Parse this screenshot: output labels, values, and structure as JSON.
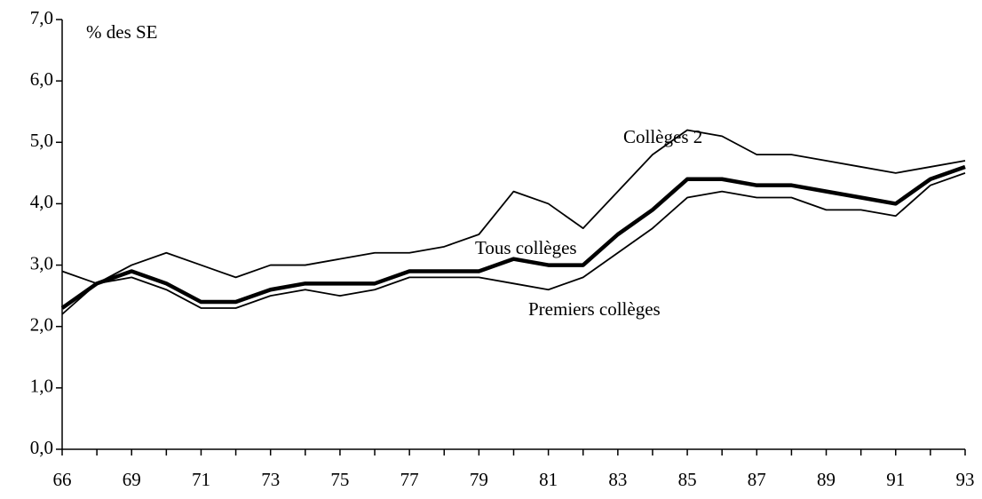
{
  "chart_data": {
    "type": "line",
    "y_label": "% des SE",
    "categories": [
      "66",
      null,
      "69",
      null,
      "71",
      null,
      "73",
      null,
      "75",
      null,
      "77",
      null,
      "79",
      null,
      "81",
      null,
      "83",
      null,
      "85",
      null,
      "87",
      null,
      "89",
      null,
      "91",
      null,
      "93"
    ],
    "series": [
      {
        "name": "Collèges 2",
        "color": "#000000",
        "values": [
          2.9,
          2.7,
          3.0,
          3.2,
          3.0,
          2.8,
          3.0,
          3.0,
          3.1,
          3.2,
          3.2,
          3.3,
          3.5,
          4.2,
          4.0,
          3.6,
          4.2,
          4.8,
          5.2,
          5.1,
          4.8,
          4.8,
          4.7,
          4.6,
          4.5,
          4.6,
          4.7
        ]
      },
      {
        "name": "Tous collèges",
        "color": "#000000",
        "values": [
          2.3,
          2.7,
          2.9,
          2.7,
          2.4,
          2.4,
          2.6,
          2.7,
          2.7,
          2.7,
          2.9,
          2.9,
          2.9,
          3.1,
          3.0,
          3.0,
          3.5,
          3.9,
          4.4,
          4.4,
          4.3,
          4.3,
          4.2,
          4.1,
          4.0,
          4.4,
          4.6
        ]
      },
      {
        "name": "Premiers collèges",
        "color": "#000000",
        "values": [
          2.2,
          2.7,
          2.8,
          2.6,
          2.3,
          2.3,
          2.5,
          2.6,
          2.5,
          2.6,
          2.8,
          2.8,
          2.8,
          2.7,
          2.6,
          2.8,
          3.2,
          3.6,
          4.1,
          4.2,
          4.1,
          4.1,
          3.9,
          3.9,
          3.8,
          4.3,
          4.5
        ]
      }
    ],
    "ylim": [
      0,
      7
    ],
    "yticks": [
      {
        "value": 0,
        "label": "0,0"
      },
      {
        "value": 1,
        "label": "1,0"
      },
      {
        "value": 2,
        "label": "2,0"
      },
      {
        "value": 3,
        "label": "3,0"
      },
      {
        "value": 4,
        "label": "4,0"
      },
      {
        "value": 5,
        "label": "5,0"
      },
      {
        "value": 6,
        "label": "6,0"
      },
      {
        "value": 7,
        "label": "7,0"
      }
    ]
  }
}
